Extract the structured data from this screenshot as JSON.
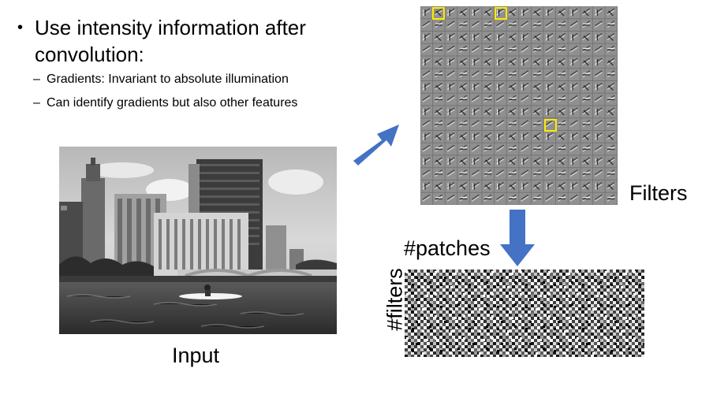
{
  "bullets": {
    "main": "Use intensity information after convolution:",
    "sub1": "Gradients: Invariant to absolute illumination",
    "sub2": "Can identify gradients but also other features",
    "marker_main": "•",
    "marker_sub": "–"
  },
  "labels": {
    "filters": "Filters",
    "patches": "#patches",
    "filters_axis": "#filters",
    "input": "Input"
  },
  "colors": {
    "arrow": "#4472C4",
    "highlight": "#FFEB00",
    "filter_bg": "#8c8c8c"
  },
  "images": {
    "input": "grayscale-city-river-kayak-photo",
    "filters": "filter-bank-grid",
    "matrix": "response-noise-matrix"
  }
}
